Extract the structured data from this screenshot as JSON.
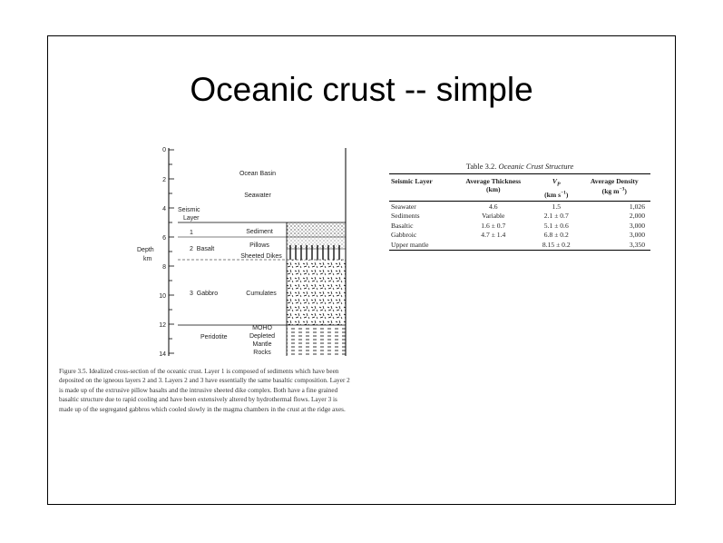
{
  "slide": {
    "title": "Oceanic crust -- simple"
  },
  "figure": {
    "depth_label_line1": "Depth",
    "depth_label_line2": "km",
    "depth_ticks": [
      "0",
      "2",
      "4",
      "6",
      "8",
      "10",
      "12",
      "14"
    ],
    "seismic_layer_line1": "Seismic",
    "seismic_layer_line2": "Layer",
    "layer_labels": [
      "1",
      "2  Basalt",
      "3  Gabbro",
      "Peridotite"
    ],
    "zone_labels": [
      "Ocean Basin",
      "Seawater",
      "Sediment",
      "Pillows",
      "Sheeted Dikes",
      "Cumulates",
      "MOHO",
      "Depleted",
      "Mantle",
      "Rocks"
    ],
    "caption_lines": [
      "Figure 3.5.  Idealized cross-section of the oceanic crust. Layer 1 is composed of sediments which have been",
      "deposited on the igneous layers 2 and 3. Layers 2 and 3 have essentially the same basaltic composition. Layer 2",
      "is made up of the extrusive pillow basalts and the intrusive sheeted dike complex. Both have a fine grained",
      "basaltic structure due to rapid cooling and have been extensively altered by hydrothermal flows. Layer 3 is",
      "made up of the segregated gabbros which cooled slowly in the magma chambers in the crust at the ridge axes."
    ]
  },
  "table": {
    "caption_prefix": "Table 3.2.",
    "caption_title": "Oceanic Crust Structure",
    "headers": {
      "layer": "Seismic Layer",
      "thickness": "Average Thickness",
      "thickness_unit": "(km)",
      "vp": "V",
      "vp_sub": "P",
      "vp_unit_prefix": "(km s",
      "vp_unit_sup": "−1",
      "vp_unit_suffix": ")",
      "density": "Average Density",
      "density_unit_prefix": "(kg m",
      "density_unit_sup": "−3",
      "density_unit_suffix": ")"
    },
    "rows": [
      {
        "layer": "Seawater",
        "thickness": "4.6",
        "vp": "1.5",
        "density": "1,026"
      },
      {
        "layer": "Sediments",
        "thickness": "Variable",
        "vp": "2.1 ± 0.7",
        "density": "2,000"
      },
      {
        "layer": "Basaltic",
        "thickness": "1.6 ± 0.7",
        "vp": "5.1 ± 0.6",
        "density": "3,000"
      },
      {
        "layer": "Gabbroic",
        "thickness": "4.7 ± 1.4",
        "vp": "6.8 ± 0.2",
        "density": "3,000"
      },
      {
        "layer": "Upper mantle",
        "thickness": "",
        "vp": "8.15 ± 0.2",
        "density": "3,350"
      }
    ]
  }
}
